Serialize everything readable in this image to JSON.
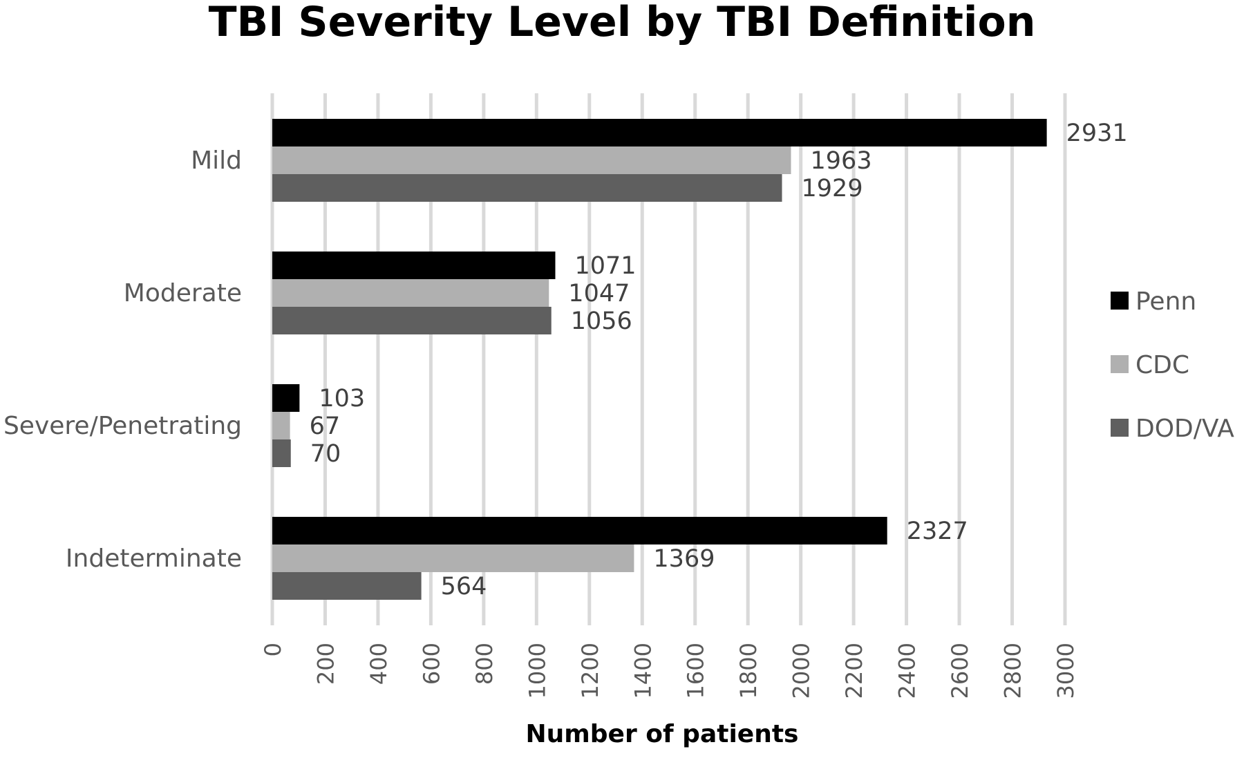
{
  "chart_data": {
    "type": "bar",
    "orientation": "horizontal",
    "title": "TBI Severity Level by TBI Definition",
    "xlabel": "Number of patients",
    "ylabel": "",
    "xlim": [
      0,
      3000
    ],
    "x_ticks": [
      "0",
      "200",
      "400",
      "600",
      "800",
      "1000",
      "1200",
      "1400",
      "1600",
      "1800",
      "2000",
      "2200",
      "2400",
      "2600",
      "2800",
      "3000"
    ],
    "categories": [
      "Mild",
      "Moderate",
      "Severe/Penetrating",
      "Indeterminate"
    ],
    "series": [
      {
        "name": "Penn",
        "color": "#000000",
        "values": [
          2931,
          1071,
          103,
          2327
        ]
      },
      {
        "name": "CDC",
        "color": "#b0b0b0",
        "values": [
          1963,
          1047,
          67,
          1369
        ]
      },
      {
        "name": "DOD/VA",
        "color": "#5f5f5f",
        "values": [
          1929,
          1056,
          70,
          564
        ]
      }
    ],
    "grid": true,
    "legend_position": "right",
    "data_labels": true
  }
}
